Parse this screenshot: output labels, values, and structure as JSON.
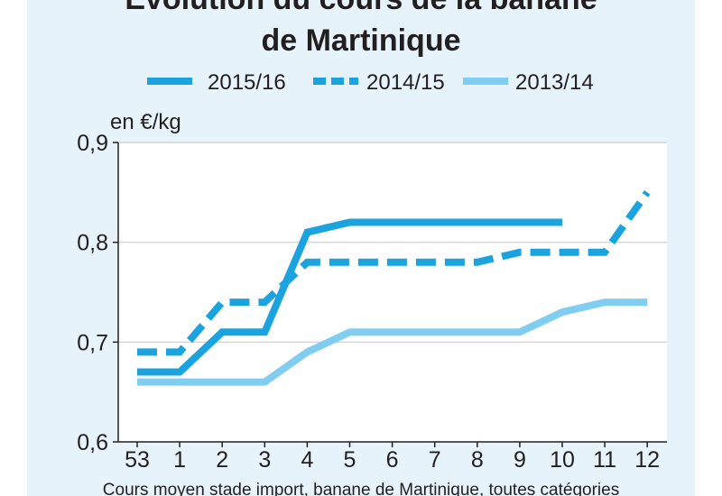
{
  "chart_data": {
    "type": "line",
    "title_line1": "Evolution du cours de la banane",
    "title_line2": "de Martinique",
    "ylabel": "en €/kg",
    "caption": "Cours moyen stade import, banane de Martinique, toutes catégories",
    "categories": [
      "53",
      "1",
      "2",
      "3",
      "4",
      "5",
      "6",
      "7",
      "8",
      "9",
      "10",
      "11",
      "12"
    ],
    "y_ticks": [
      "0,9",
      "0,8",
      "0,7",
      "0,6"
    ],
    "ylim": [
      0.6,
      0.9
    ],
    "grid": true,
    "legend_position": "top",
    "series": [
      {
        "name": "2015/16",
        "style": "solid",
        "color": "#1aa3de",
        "values": [
          0.67,
          0.67,
          0.71,
          0.71,
          0.81,
          0.82,
          0.82,
          0.82,
          0.82,
          0.82,
          0.82,
          null,
          null
        ]
      },
      {
        "name": "2014/15",
        "style": "dashed",
        "color": "#1aa3de",
        "values": [
          0.69,
          0.69,
          0.74,
          0.74,
          0.78,
          0.78,
          0.78,
          0.78,
          0.78,
          0.79,
          0.79,
          0.79,
          0.85
        ]
      },
      {
        "name": "2013/14",
        "style": "solid",
        "color": "#7fcdf1",
        "values": [
          0.66,
          0.66,
          0.66,
          0.66,
          0.69,
          0.71,
          0.71,
          0.71,
          0.71,
          0.71,
          0.73,
          0.74,
          0.74
        ]
      }
    ]
  }
}
